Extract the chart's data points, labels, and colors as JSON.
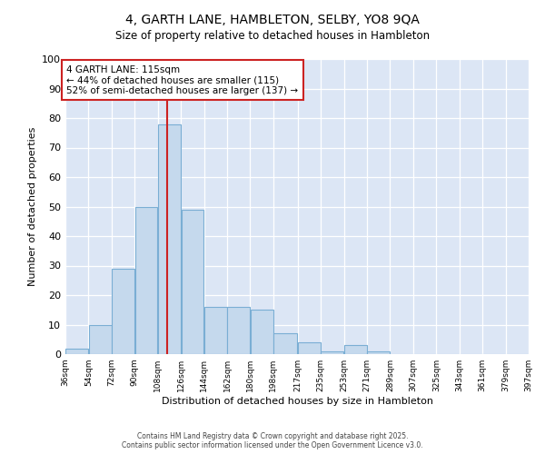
{
  "title": "4, GARTH LANE, HAMBLETON, SELBY, YO8 9QA",
  "subtitle": "Size of property relative to detached houses in Hambleton",
  "xlabel": "Distribution of detached houses by size in Hambleton",
  "ylabel": "Number of detached properties",
  "bin_edges": [
    36,
    54,
    72,
    90,
    108,
    126,
    144,
    162,
    180,
    198,
    217,
    235,
    253,
    271,
    289,
    307,
    325,
    343,
    361,
    379,
    397
  ],
  "bin_labels": [
    "36sqm",
    "54sqm",
    "72sqm",
    "90sqm",
    "108sqm",
    "126sqm",
    "144sqm",
    "162sqm",
    "180sqm",
    "198sqm",
    "217sqm",
    "235sqm",
    "253sqm",
    "271sqm",
    "289sqm",
    "307sqm",
    "325sqm",
    "343sqm",
    "361sqm",
    "379sqm",
    "397sqm"
  ],
  "counts": [
    2,
    10,
    29,
    50,
    78,
    49,
    16,
    16,
    15,
    7,
    4,
    1,
    3,
    1,
    0,
    0,
    0,
    0,
    0,
    0
  ],
  "bar_color": "#c5d9ed",
  "bar_edge_color": "#7aaed4",
  "reference_line_x": 115,
  "reference_line_color": "#cc2222",
  "annotation_text": "4 GARTH LANE: 115sqm\n← 44% of detached houses are smaller (115)\n52% of semi-detached houses are larger (137) →",
  "annotation_box_color": "#ffffff",
  "annotation_box_edge_color": "#cc2222",
  "ylim": [
    0,
    100
  ],
  "yticks": [
    0,
    10,
    20,
    30,
    40,
    50,
    60,
    70,
    80,
    90,
    100
  ],
  "grid_color": "#d0d8e8",
  "background_color": "#dce6f5",
  "footer_line1": "Contains HM Land Registry data © Crown copyright and database right 2025.",
  "footer_line2": "Contains public sector information licensed under the Open Government Licence v3.0."
}
